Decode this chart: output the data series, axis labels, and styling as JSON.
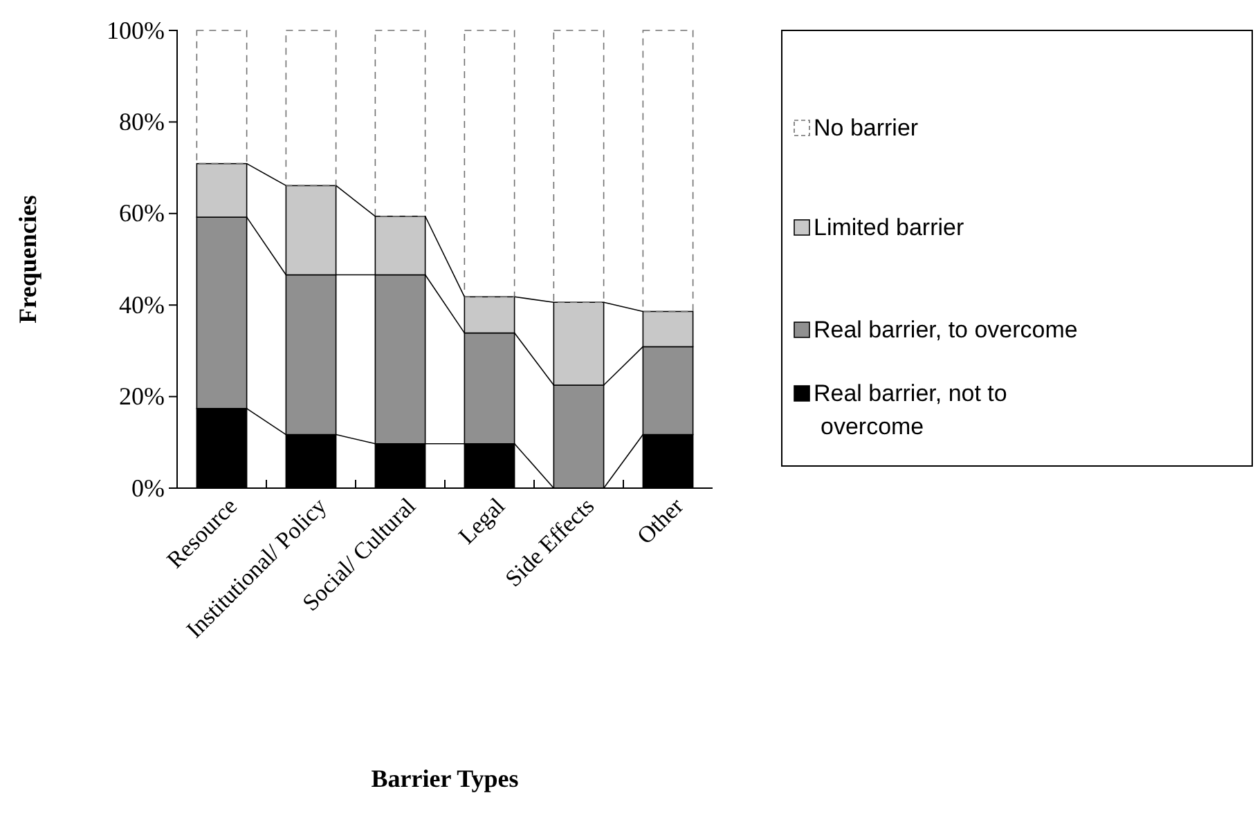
{
  "chart_data": {
    "type": "bar",
    "stacked": true,
    "xlabel": "Barrier Types",
    "ylabel": "Frequencies",
    "categories": [
      "Resource",
      "Institutional/ Policy",
      "Social/ Cultural",
      "Legal",
      "Side Effects",
      "Other"
    ],
    "series": [
      {
        "name": "Real barrier, not to overcome",
        "color": "#000000",
        "values": [
          17.4,
          11.7,
          9.7,
          9.7,
          0,
          11.7
        ]
      },
      {
        "name": "Real barrier, to overcome",
        "color": "#909090",
        "values": [
          41.8,
          34.9,
          36.9,
          24.2,
          22.5,
          19.2
        ]
      },
      {
        "name": "Limited barrier",
        "color": "#c8c8c8",
        "values": [
          11.7,
          19.5,
          12.8,
          7.9,
          18.1,
          7.7
        ]
      },
      {
        "name": "No barrier",
        "color": "#707070",
        "line_style": "dashed",
        "values": [
          29.1,
          33.9,
          40.6,
          58.2,
          59.4,
          61.4
        ]
      }
    ],
    "ylim": [
      0,
      100
    ],
    "yticks": [
      {
        "value": 0,
        "label": "0%"
      },
      {
        "value": 20,
        "label": "20%"
      },
      {
        "value": 40,
        "label": "40%"
      },
      {
        "value": 60,
        "label": "60%"
      },
      {
        "value": 80,
        "label": "80%"
      },
      {
        "value": 100,
        "label": "100%"
      }
    ],
    "grid": false,
    "legend": "right"
  }
}
